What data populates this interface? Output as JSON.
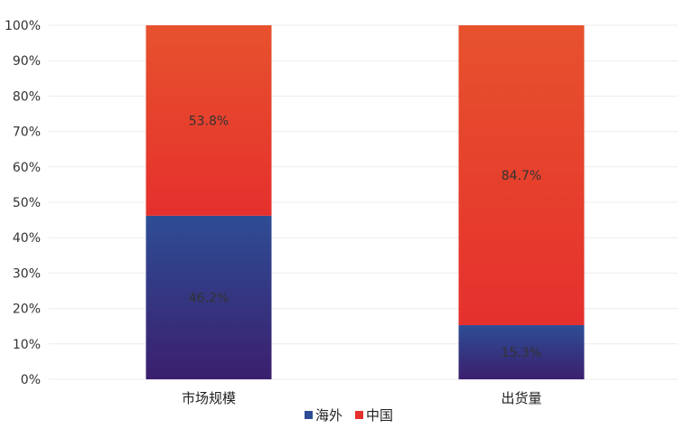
{
  "chart_data": {
    "type": "bar",
    "stacked": true,
    "orientation": "vertical",
    "categories": [
      "市场规模",
      "出货量"
    ],
    "series": [
      {
        "name": "海外",
        "values": [
          46.2,
          15.3
        ],
        "labels": [
          "46.2%",
          "15.3%"
        ]
      },
      {
        "name": "中国",
        "values": [
          53.8,
          84.7
        ],
        "labels": [
          "53.8%",
          "84.7%"
        ]
      }
    ],
    "ylim": [
      0,
      100
    ],
    "yticks": [
      "0%",
      "10%",
      "20%",
      "30%",
      "40%",
      "50%",
      "60%",
      "70%",
      "80%",
      "90%",
      "100%"
    ],
    "grid": true,
    "legend_position": "bottom",
    "colors": {
      "海外": {
        "top": "#2e4d95",
        "bottom": "#3b1f6e"
      },
      "中国": {
        "top": "#e7522d",
        "bottom": "#e5302d"
      }
    }
  }
}
